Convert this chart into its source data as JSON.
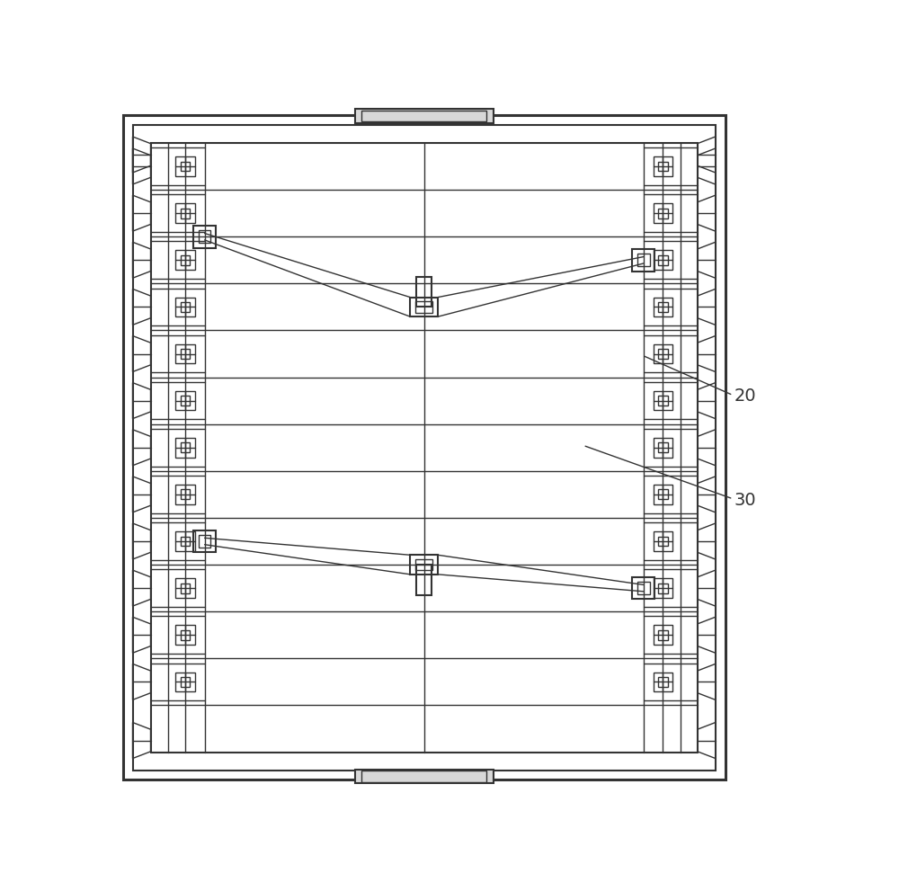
{
  "bg_color": "#ffffff",
  "line_color": "#333333",
  "lw_thick": 2.2,
  "lw_med": 1.5,
  "lw_thin": 1.0,
  "fig_width": 10.0,
  "fig_height": 9.91,
  "label_20": "20",
  "label_30": "30"
}
